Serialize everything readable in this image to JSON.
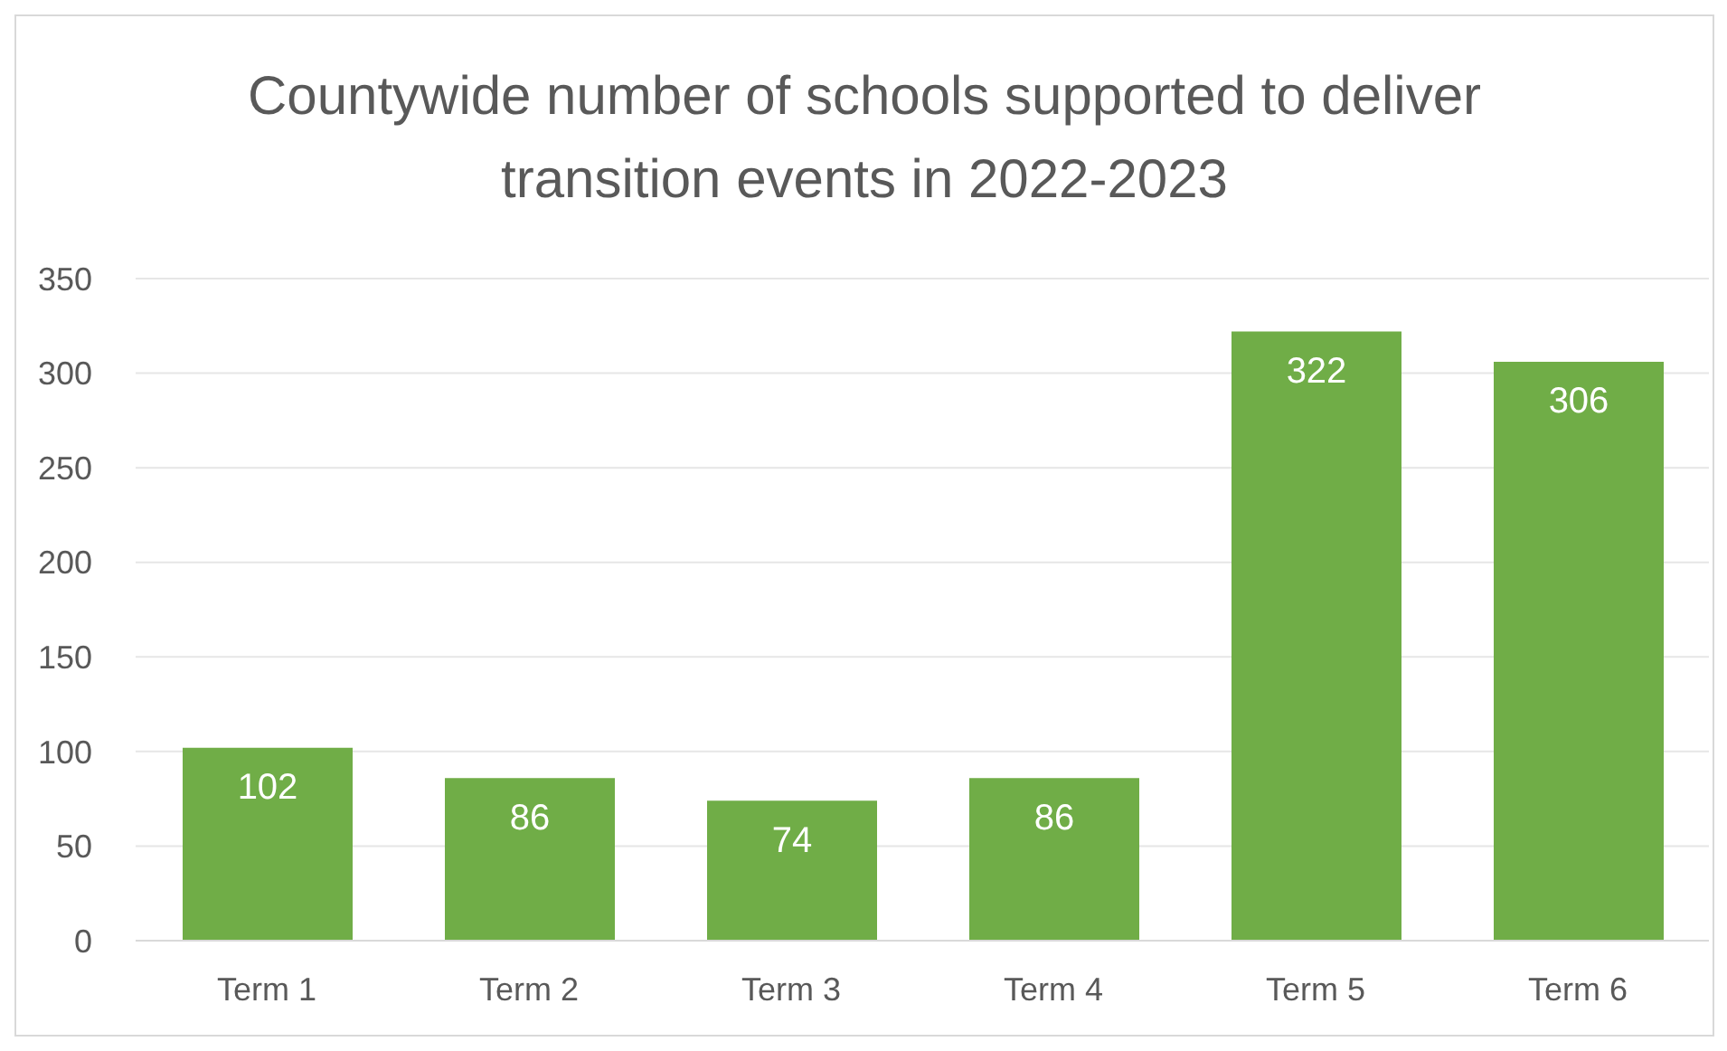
{
  "chart_data": {
    "type": "bar",
    "title": "Countywide number of schools supported to deliver transition events in 2022-2023",
    "categories": [
      "Term 1",
      "Term 2",
      "Term 3",
      "Term 4",
      "Term 5",
      "Term 6"
    ],
    "values": [
      102,
      86,
      74,
      86,
      322,
      306
    ],
    "color": "#70ad47",
    "ylim": [
      0,
      350
    ],
    "yticks": [
      0,
      50,
      100,
      150,
      200,
      250,
      300,
      350
    ],
    "grid": "y",
    "data_labels": true
  }
}
